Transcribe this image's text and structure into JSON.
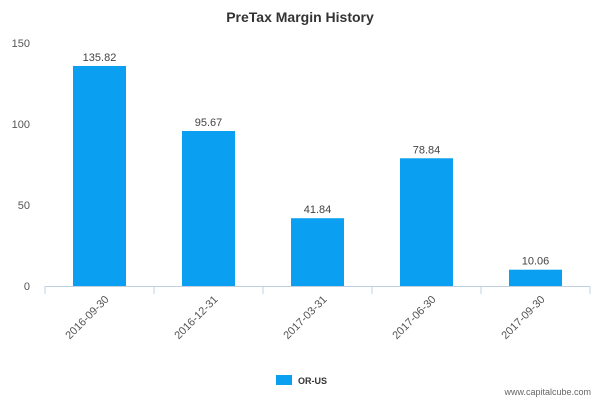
{
  "chart_data": {
    "type": "bar",
    "title": "PreTax Margin History",
    "categories": [
      "2016-09-30",
      "2016-12-31",
      "2017-03-31",
      "2017-06-30",
      "2017-09-30"
    ],
    "series": [
      {
        "name": "OR-US",
        "values": [
          135.82,
          95.67,
          41.84,
          78.84,
          10.06
        ],
        "color": "#0a9ff0"
      }
    ],
    "data_labels": [
      "135.82",
      "95.67",
      "41.84",
      "78.84",
      "10.06"
    ],
    "ylim": [
      0,
      150
    ],
    "yticks": [
      0,
      50,
      100,
      150
    ],
    "xlabel": "",
    "ylabel": "",
    "grid": false,
    "legend_position": "bottom"
  },
  "credit": "www.capitalcube.com"
}
